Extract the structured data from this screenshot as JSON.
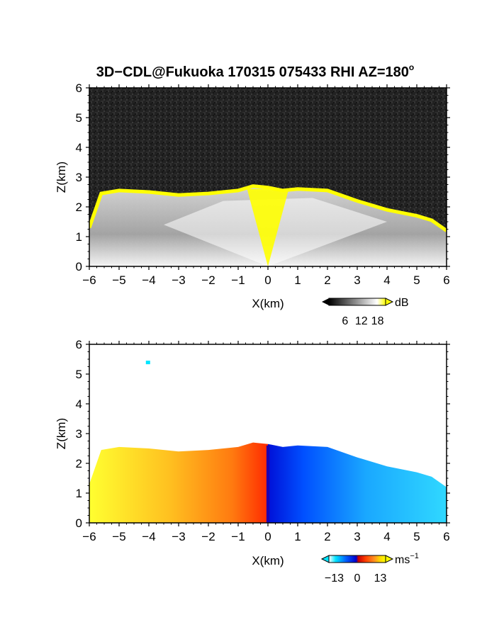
{
  "chart_data": {
    "title_main": "3D−CDL@Fukuoka 170315 075433 RHI AZ=180",
    "title_sup": "o",
    "panels": [
      {
        "type": "heatmap",
        "quantity": "backscatter",
        "xlabel": "X(km)",
        "ylabel": "Z(km)",
        "xlim": [
          -6,
          6
        ],
        "ylim": [
          0,
          6
        ],
        "xticks": [
          "−6",
          "−5",
          "−4",
          "−3",
          "−2",
          "−1",
          "0",
          "1",
          "2",
          "3",
          "4",
          "5",
          "6"
        ],
        "yticks": [
          "0",
          "1",
          "2",
          "3",
          "4",
          "5",
          "6"
        ],
        "top_profile": [
          [
            -6.0,
            1.3
          ],
          [
            -5.6,
            2.45
          ],
          [
            -5.0,
            2.55
          ],
          [
            -4.0,
            2.5
          ],
          [
            -3.0,
            2.4
          ],
          [
            -2.0,
            2.45
          ],
          [
            -1.0,
            2.55
          ],
          [
            -0.5,
            2.7
          ],
          [
            0.0,
            2.65
          ],
          [
            0.5,
            2.55
          ],
          [
            1.0,
            2.6
          ],
          [
            2.0,
            2.55
          ],
          [
            3.0,
            2.2
          ],
          [
            4.0,
            1.9
          ],
          [
            5.0,
            1.7
          ],
          [
            5.5,
            1.55
          ],
          [
            6.0,
            1.2
          ]
        ],
        "colorbar": {
          "unit": "dB",
          "ticks": [
            "6",
            "12",
            "18"
          ],
          "range": [
            0,
            21
          ],
          "colors": [
            "#000000",
            "#ffffff",
            "#ffff00"
          ]
        }
      },
      {
        "type": "heatmap",
        "quantity": "doppler_velocity",
        "xlabel": "X(km)",
        "ylabel": "Z(km)",
        "xlim": [
          -6,
          6
        ],
        "ylim": [
          0,
          6
        ],
        "xticks": [
          "−6",
          "−5",
          "−4",
          "−3",
          "−2",
          "−1",
          "0",
          "1",
          "2",
          "3",
          "4",
          "5",
          "6"
        ],
        "yticks": [
          "0",
          "1",
          "2",
          "3",
          "4",
          "5",
          "6"
        ],
        "colorbar": {
          "unit": "ms",
          "unit_sup": "−1",
          "ticks": [
            "−13",
            "0",
            "13"
          ],
          "range": [
            -16,
            16
          ],
          "colors": [
            "#ffffff",
            "#00e5ff",
            "#0060ff",
            "#0000cc",
            "#c80000",
            "#ff4000",
            "#ff9020",
            "#ffd700",
            "#ffff00"
          ]
        }
      }
    ]
  }
}
